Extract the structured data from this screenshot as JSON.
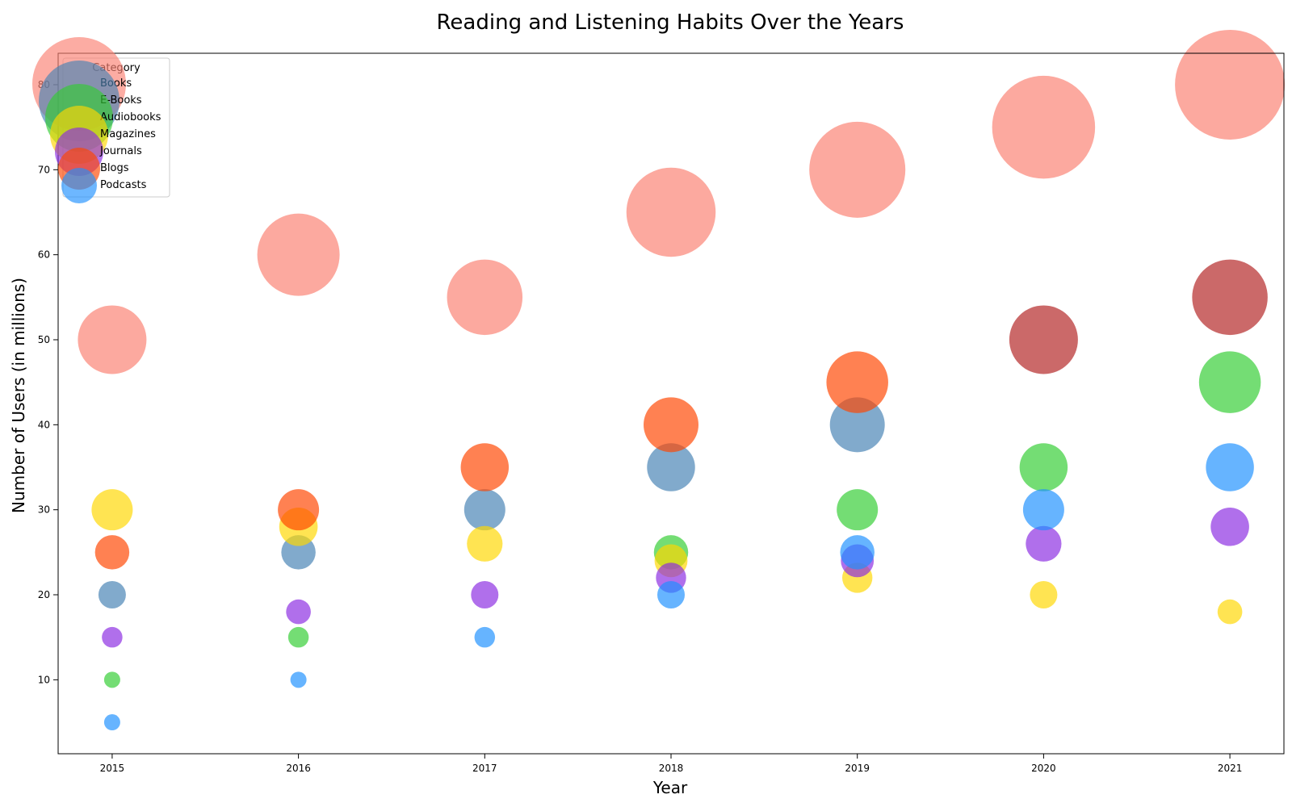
{
  "chart_data": {
    "type": "scatter",
    "title": "Reading and Listening Habits Over the Years",
    "xlabel": "Year",
    "ylabel": "Number of Users (in millions)",
    "x_ticks": [
      "2015",
      "2016",
      "2017",
      "2018",
      "2019",
      "2020",
      "2021"
    ],
    "y_ticks": [
      10,
      20,
      30,
      40,
      50,
      60,
      70,
      80
    ],
    "xlim": [
      2014.71,
      2021.29
    ],
    "ylim": [
      1.3,
      83.7
    ],
    "grid": false,
    "legend": {
      "title": "Category",
      "placement": "top-left",
      "entries": [
        "Books",
        "E-Books",
        "Audiobooks",
        "Magazines",
        "Journals",
        "Blogs",
        "Podcasts"
      ]
    },
    "points": [
      {
        "year": 2015,
        "value": 50,
        "color": "#FA8072"
      },
      {
        "year": 2016,
        "value": 60,
        "color": "#FA8072"
      },
      {
        "year": 2017,
        "value": 55,
        "color": "#FA8072"
      },
      {
        "year": 2018,
        "value": 65,
        "color": "#FA8072"
      },
      {
        "year": 2019,
        "value": 70,
        "color": "#FA8072"
      },
      {
        "year": 2020,
        "value": 75,
        "color": "#FA8072"
      },
      {
        "year": 2021,
        "value": 80,
        "color": "#FA8072"
      },
      {
        "year": 2015,
        "value": 20,
        "color": "#4682B4"
      },
      {
        "year": 2016,
        "value": 25,
        "color": "#4682B4"
      },
      {
        "year": 2017,
        "value": 30,
        "color": "#4682B4"
      },
      {
        "year": 2018,
        "value": 35,
        "color": "#4682B4"
      },
      {
        "year": 2019,
        "value": 40,
        "color": "#4682B4"
      },
      {
        "year": 2020,
        "value": 50,
        "color": "#B22222"
      },
      {
        "year": 2021,
        "value": 55,
        "color": "#B22222"
      },
      {
        "year": 2015,
        "value": 10,
        "color": "#32CD32"
      },
      {
        "year": 2016,
        "value": 15,
        "color": "#32CD32"
      },
      {
        "year": 2018,
        "value": 25,
        "color": "#32CD32"
      },
      {
        "year": 2019,
        "value": 30,
        "color": "#32CD32"
      },
      {
        "year": 2020,
        "value": 35,
        "color": "#32CD32"
      },
      {
        "year": 2021,
        "value": 45,
        "color": "#32CD32"
      },
      {
        "year": 2015,
        "value": 30,
        "color": "#FFD700"
      },
      {
        "year": 2016,
        "value": 28,
        "color": "#FFD700"
      },
      {
        "year": 2017,
        "value": 26,
        "color": "#FFD700"
      },
      {
        "year": 2018,
        "value": 24,
        "color": "#FFD700"
      },
      {
        "year": 2019,
        "value": 22,
        "color": "#FFD700"
      },
      {
        "year": 2020,
        "value": 20,
        "color": "#FFD700"
      },
      {
        "year": 2021,
        "value": 18,
        "color": "#FFD700"
      },
      {
        "year": 2015,
        "value": 15,
        "color": "#8A2BE2"
      },
      {
        "year": 2016,
        "value": 18,
        "color": "#8A2BE2"
      },
      {
        "year": 2017,
        "value": 20,
        "color": "#8A2BE2"
      },
      {
        "year": 2018,
        "value": 22,
        "color": "#8A2BE2"
      },
      {
        "year": 2019,
        "value": 24,
        "color": "#8A2BE2"
      },
      {
        "year": 2020,
        "value": 26,
        "color": "#8A2BE2"
      },
      {
        "year": 2021,
        "value": 28,
        "color": "#8A2BE2"
      },
      {
        "year": 2015,
        "value": 25,
        "color": "#FF4500"
      },
      {
        "year": 2016,
        "value": 30,
        "color": "#FF4500"
      },
      {
        "year": 2017,
        "value": 35,
        "color": "#FF4500"
      },
      {
        "year": 2018,
        "value": 40,
        "color": "#FF4500"
      },
      {
        "year": 2019,
        "value": 45,
        "color": "#FF4500"
      },
      {
        "year": 2015,
        "value": 5,
        "color": "#1E90FF"
      },
      {
        "year": 2016,
        "value": 10,
        "color": "#1E90FF"
      },
      {
        "year": 2017,
        "value": 15,
        "color": "#1E90FF"
      },
      {
        "year": 2018,
        "value": 20,
        "color": "#1E90FF"
      },
      {
        "year": 2019,
        "value": 25,
        "color": "#1E90FF"
      },
      {
        "year": 2020,
        "value": 30,
        "color": "#1E90FF"
      },
      {
        "year": 2021,
        "value": 35,
        "color": "#1E90FF"
      }
    ],
    "legend_colors": [
      "#FA8072",
      "#4682B4",
      "#32CD32",
      "#FFD700",
      "#8A2BE2",
      "#FF4500",
      "#1E90FF"
    ],
    "bubble_size": "proportional to value"
  }
}
